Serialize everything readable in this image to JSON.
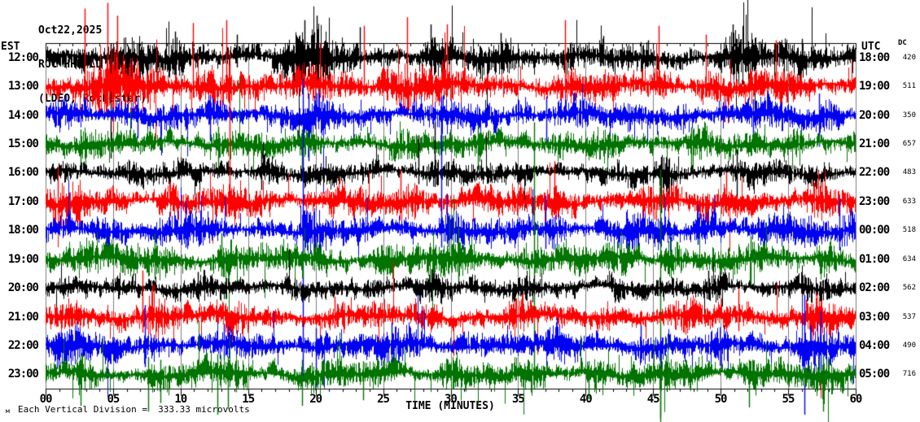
{
  "header": {
    "date": "Oct22,2025",
    "station_line": "ROC HHE LD --",
    "location_line": "(LDEO, Rochester)"
  },
  "axes": {
    "left_header": "EST",
    "right_header": "UTC",
    "dc_header": "DC",
    "x_title": "TIME (MINUTES)",
    "x_ticks": [
      "00",
      "05",
      "10",
      "15",
      "20",
      "25",
      "30",
      "35",
      "40",
      "45",
      "50",
      "55",
      "60"
    ]
  },
  "footer": {
    "marker": "м",
    "scale_note": "Each Vertical Division =  333.33 microvolts"
  },
  "chart_data": {
    "type": "line",
    "subtype": "helicorder-seismogram",
    "title": "ROC HHE LD -- (LDEO, Rochester)",
    "date": "Oct22,2025",
    "xlabel": "TIME (MINUTES)",
    "x_range_minutes": [
      0,
      60
    ],
    "x_tick_step_minutes": 5,
    "minor_tick_minutes": 1,
    "timezone_left": "EST",
    "timezone_right": "UTC",
    "scale_note": "Each Vertical Division = 333.33 microvolts",
    "amplitude_unit": "half_row_height_divisions",
    "grid": true,
    "colors": {
      "black": "#000000",
      "red": "#fe0000",
      "blue": "#0000f2",
      "green": "#007300",
      "grid": "#7d7d7d",
      "frame": "#000000",
      "bg": "#ffffff"
    },
    "trace_color_cycle": [
      "black",
      "red",
      "blue",
      "green"
    ],
    "rows": [
      {
        "est": "12:00",
        "utc": "18:00",
        "dc": "420",
        "color": "black",
        "seed": 11,
        "base": 0.85,
        "spike_p": 0.07,
        "bursts": [
          [
            4.0,
            7.0,
            1.6
          ],
          [
            9.0,
            10.0,
            0.9
          ],
          [
            16.5,
            21.5,
            2.4
          ],
          [
            27.5,
            29.5,
            1.0
          ],
          [
            33.0,
            34.5,
            0.9
          ],
          [
            38.0,
            39.5,
            1.0
          ],
          [
            49.5,
            52.5,
            1.9
          ],
          [
            55.5,
            56.5,
            0.8
          ]
        ],
        "spikes": [
          [
            4.8,
            1.0,
            7.0
          ],
          [
            19.2,
            2.6,
            2.0
          ],
          [
            20.1,
            2.9,
            1.5
          ],
          [
            50.9,
            2.3,
            1.2
          ],
          [
            9.6,
            1.8,
            0.7
          ],
          [
            23.3,
            2.1,
            0.8
          ],
          [
            28.5,
            2.3,
            1.0
          ],
          [
            33.7,
            1.7,
            0.8
          ],
          [
            41.3,
            1.5,
            0.6
          ],
          [
            14.2,
            1.6,
            0.7
          ],
          [
            56.0,
            1.3,
            0.9
          ],
          [
            44.6,
            1.2,
            0.5
          ]
        ]
      },
      {
        "est": "13:00",
        "utc": "19:00",
        "dc": "511",
        "color": "red",
        "seed": 22,
        "base": 0.8,
        "spike_p": 0.06,
        "bursts": [
          [
            1.5,
            7.2,
            2.3
          ],
          [
            10.5,
            14.5,
            1.2
          ],
          [
            19.0,
            21.0,
            1.1
          ],
          [
            23.5,
            30.0,
            1.3
          ],
          [
            37.5,
            39.5,
            1.1
          ],
          [
            44.5,
            46.0,
            0.9
          ],
          [
            48.0,
            50.0,
            1.0
          ],
          [
            53.5,
            55.0,
            0.9
          ]
        ],
        "spikes": [
          [
            2.9,
            5.4,
            1.0
          ],
          [
            4.6,
            5.8,
            1.4
          ],
          [
            5.3,
            4.9,
            1.0
          ],
          [
            10.9,
            4.4,
            0.8
          ],
          [
            13.4,
            4.6,
            0.9
          ],
          [
            23.6,
            4.2,
            0.7
          ],
          [
            26.8,
            4.8,
            0.8
          ],
          [
            29.7,
            4.3,
            0.7
          ],
          [
            38.5,
            4.6,
            0.8
          ],
          [
            45.4,
            4.2,
            0.6
          ],
          [
            48.9,
            3.6,
            0.7
          ],
          [
            54.1,
            3.2,
            0.6
          ],
          [
            20.3,
            3.0,
            0.8
          ]
        ]
      },
      {
        "est": "14:00",
        "utc": "20:00",
        "dc": "350",
        "color": "blue",
        "seed": 33,
        "base": 0.75,
        "spike_p": 0.05,
        "bursts": [
          [
            0.0,
            2.0,
            1.0
          ],
          [
            11.0,
            13.0,
            0.9
          ],
          [
            19.0,
            20.5,
            1.2
          ],
          [
            28.5,
            30.0,
            1.1
          ],
          [
            36.5,
            40.0,
            1.0
          ],
          [
            46.0,
            48.0,
            0.9
          ],
          [
            51.5,
            53.0,
            0.9
          ],
          [
            56.5,
            58.5,
            1.0
          ]
        ],
        "spikes": [
          [
            19.5,
            1.5,
            3.2
          ],
          [
            29.3,
            1.2,
            2.6
          ],
          [
            12.2,
            1.4,
            1.8
          ],
          [
            37.1,
            1.3,
            2.0
          ],
          [
            52.4,
            1.1,
            1.7
          ],
          [
            57.3,
            1.5,
            2.2
          ],
          [
            6.8,
            1.2,
            1.6
          ]
        ]
      },
      {
        "est": "15:00",
        "utc": "21:00",
        "dc": "657",
        "color": "green",
        "seed": 44,
        "base": 0.7,
        "spike_p": 0.04,
        "bursts": [
          [
            2.0,
            3.5,
            0.9
          ],
          [
            12.0,
            14.0,
            1.2
          ],
          [
            18.5,
            19.5,
            1.0
          ],
          [
            25.0,
            27.0,
            0.9
          ],
          [
            31.0,
            33.0,
            0.9
          ],
          [
            40.0,
            42.0,
            0.8
          ],
          [
            47.0,
            49.0,
            0.9
          ],
          [
            54.0,
            56.0,
            0.8
          ]
        ],
        "spikes": [
          [
            12.8,
            1.2,
            2.2
          ],
          [
            19.0,
            1.0,
            2.6
          ],
          [
            32.0,
            1.3,
            1.8
          ],
          [
            47.8,
            1.1,
            1.9
          ],
          [
            2.6,
            1.0,
            1.6
          ]
        ]
      },
      {
        "est": "16:00",
        "utc": "22:00",
        "dc": "483",
        "color": "black",
        "seed": 55,
        "base": 0.6,
        "spike_p": 0.03,
        "bursts": [
          [
            5.0,
            7.0,
            0.8
          ],
          [
            15.0,
            17.0,
            0.9
          ],
          [
            27.5,
            30.0,
            1.0
          ],
          [
            44.5,
            46.5,
            0.9
          ],
          [
            50.5,
            52.0,
            1.0
          ]
        ],
        "spikes": [
          [
            45.6,
            1.1,
            2.8
          ],
          [
            51.2,
            1.6,
            1.8
          ],
          [
            16.0,
            1.4,
            1.2
          ],
          [
            28.8,
            3.5,
            1.0
          ],
          [
            27.6,
            2.6,
            0.8
          ]
        ]
      },
      {
        "est": "17:00",
        "utc": "23:00",
        "dc": "633",
        "color": "red",
        "seed": 66,
        "base": 0.8,
        "spike_p": 0.05,
        "bursts": [
          [
            0.0,
            3.0,
            1.2
          ],
          [
            8.0,
            10.0,
            0.9
          ],
          [
            13.0,
            14.5,
            1.4
          ],
          [
            20.0,
            22.0,
            0.9
          ],
          [
            25.5,
            27.5,
            1.0
          ],
          [
            31.5,
            33.0,
            0.9
          ],
          [
            37.0,
            38.5,
            1.2
          ],
          [
            43.0,
            45.0,
            0.9
          ],
          [
            49.5,
            51.5,
            1.0
          ],
          [
            56.0,
            58.0,
            1.0
          ]
        ],
        "spikes": [
          [
            13.6,
            10.5,
            1.0
          ],
          [
            37.7,
            2.8,
            0.9
          ],
          [
            26.3,
            2.2,
            0.8
          ],
          [
            50.4,
            2.0,
            0.8
          ],
          [
            0.9,
            2.4,
            0.9
          ],
          [
            57.2,
            2.1,
            0.7
          ]
        ]
      },
      {
        "est": "18:00",
        "utc": "00:00",
        "dc": "518",
        "color": "blue",
        "seed": 77,
        "base": 0.8,
        "spike_p": 0.05,
        "bursts": [
          [
            3.0,
            5.0,
            0.9
          ],
          [
            9.5,
            11.5,
            1.0
          ],
          [
            18.5,
            20.5,
            1.3
          ],
          [
            28.5,
            30.5,
            1.1
          ],
          [
            36.5,
            38.0,
            1.0
          ],
          [
            42.0,
            44.0,
            0.9
          ],
          [
            47.5,
            49.5,
            1.0
          ],
          [
            53.0,
            55.0,
            0.9
          ],
          [
            58.0,
            60.0,
            1.0
          ]
        ],
        "spikes": [
          [
            19.05,
            10.5,
            10.5
          ],
          [
            29.3,
            9.3,
            1.2
          ],
          [
            37.0,
            2.4,
            1.3
          ],
          [
            10.4,
            2.0,
            1.2
          ],
          [
            48.3,
            1.8,
            1.0
          ],
          [
            58.8,
            2.2,
            1.4
          ]
        ]
      },
      {
        "est": "19:00",
        "utc": "01:00",
        "dc": "634",
        "color": "green",
        "seed": 88,
        "base": 0.8,
        "spike_p": 0.05,
        "bursts": [
          [
            1.5,
            3.5,
            0.9
          ],
          [
            7.0,
            9.0,
            1.0
          ],
          [
            12.0,
            14.0,
            1.1
          ],
          [
            18.5,
            20.0,
            1.0
          ],
          [
            24.0,
            26.0,
            0.9
          ],
          [
            29.0,
            31.5,
            1.2
          ],
          [
            36.0,
            37.0,
            1.0
          ],
          [
            41.0,
            43.0,
            0.9
          ],
          [
            45.0,
            46.5,
            1.1
          ],
          [
            51.5,
            53.0,
            0.9
          ],
          [
            56.5,
            58.5,
            1.0
          ]
        ],
        "spikes": [
          [
            36.2,
            9.5,
            9.0
          ],
          [
            45.5,
            6.2,
            11.0
          ],
          [
            8.1,
            1.8,
            1.4
          ],
          [
            30.6,
            2.2,
            1.6
          ],
          [
            52.2,
            1.6,
            1.8
          ],
          [
            13.0,
            1.8,
            1.2
          ]
        ]
      },
      {
        "est": "20:00",
        "utc": "02:00",
        "dc": "562",
        "color": "black",
        "seed": 99,
        "base": 0.55,
        "spike_p": 0.025,
        "bursts": [
          [
            4.0,
            6.0,
            0.7
          ],
          [
            10.5,
            12.0,
            0.8
          ],
          [
            17.0,
            19.0,
            0.8
          ],
          [
            27.0,
            30.0,
            0.9
          ],
          [
            35.0,
            36.5,
            0.7
          ],
          [
            41.5,
            43.0,
            0.7
          ],
          [
            48.0,
            50.0,
            0.8
          ],
          [
            55.0,
            57.0,
            0.7
          ]
        ],
        "spikes": [
          [
            28.6,
            1.3,
            0.9
          ],
          [
            49.1,
            1.2,
            0.8
          ],
          [
            11.3,
            1.1,
            0.7
          ]
        ]
      },
      {
        "est": "21:00",
        "utc": "03:00",
        "dc": "537",
        "color": "red",
        "seed": 110,
        "base": 0.65,
        "spike_p": 0.04,
        "bursts": [
          [
            6.6,
            8.8,
            2.4
          ],
          [
            0.0,
            1.5,
            0.8
          ],
          [
            13.0,
            15.0,
            0.8
          ],
          [
            20.5,
            22.5,
            0.8
          ],
          [
            27.0,
            29.0,
            0.8
          ],
          [
            33.5,
            35.5,
            0.8
          ],
          [
            40.0,
            42.0,
            0.8
          ],
          [
            46.0,
            48.0,
            0.8
          ],
          [
            50.5,
            52.5,
            0.9
          ],
          [
            55.0,
            58.5,
            1.1
          ]
        ],
        "spikes": [
          [
            7.15,
            3.2,
            1.1
          ],
          [
            7.9,
            2.3,
            0.9
          ],
          [
            51.3,
            1.8,
            1.0
          ],
          [
            57.1,
            1.6,
            1.0
          ],
          [
            21.4,
            1.4,
            0.8
          ]
        ]
      },
      {
        "est": "22:00",
        "utc": "04:00",
        "dc": "490",
        "color": "blue",
        "seed": 121,
        "base": 0.7,
        "spike_p": 0.045,
        "bursts": [
          [
            0.0,
            2.5,
            1.1
          ],
          [
            6.5,
            8.0,
            1.0
          ],
          [
            12.5,
            14.0,
            0.9
          ],
          [
            19.5,
            21.0,
            1.0
          ],
          [
            24.5,
            26.5,
            1.0
          ],
          [
            31.0,
            33.0,
            0.9
          ],
          [
            36.5,
            38.5,
            1.0
          ],
          [
            43.0,
            45.0,
            0.9
          ],
          [
            49.0,
            51.0,
            0.9
          ],
          [
            54.5,
            58.5,
            1.3
          ]
        ],
        "spikes": [
          [
            7.35,
            2.8,
            1.5
          ],
          [
            20.0,
            1.2,
            2.9
          ],
          [
            56.2,
            3.5,
            4.8
          ],
          [
            57.4,
            2.4,
            1.8
          ],
          [
            25.6,
            1.6,
            1.2
          ],
          [
            44.1,
            1.4,
            1.1
          ],
          [
            13.2,
            1.5,
            1.0
          ]
        ]
      },
      {
        "est": "23:00",
        "utc": "05:00",
        "dc": "716",
        "color": "green",
        "seed": 132,
        "base": 0.7,
        "spike_p": 0.05,
        "bursts": [
          [
            1.5,
            3.5,
            1.0
          ],
          [
            7.0,
            9.0,
            1.1
          ],
          [
            12.0,
            14.5,
            1.2
          ],
          [
            18.5,
            20.0,
            1.0
          ],
          [
            23.0,
            25.0,
            0.9
          ],
          [
            28.5,
            31.0,
            1.0
          ],
          [
            34.5,
            36.5,
            0.9
          ],
          [
            39.5,
            41.5,
            0.9
          ],
          [
            44.5,
            46.5,
            1.1
          ],
          [
            51.0,
            53.0,
            1.0
          ],
          [
            56.0,
            58.5,
            1.2
          ]
        ],
        "spikes": [
          [
            2.6,
            1.0,
            2.2
          ],
          [
            7.6,
            1.2,
            2.6
          ],
          [
            8.5,
            1.0,
            2.0
          ],
          [
            12.7,
            1.4,
            2.8
          ],
          [
            13.5,
            1.2,
            2.4
          ],
          [
            19.0,
            1.0,
            2.2
          ],
          [
            23.5,
            0.9,
            1.8
          ],
          [
            45.5,
            1.1,
            3.3
          ],
          [
            52.1,
            1.0,
            2.3
          ],
          [
            57.6,
            1.3,
            2.6
          ],
          [
            40.2,
            0.9,
            1.7
          ]
        ]
      }
    ]
  }
}
